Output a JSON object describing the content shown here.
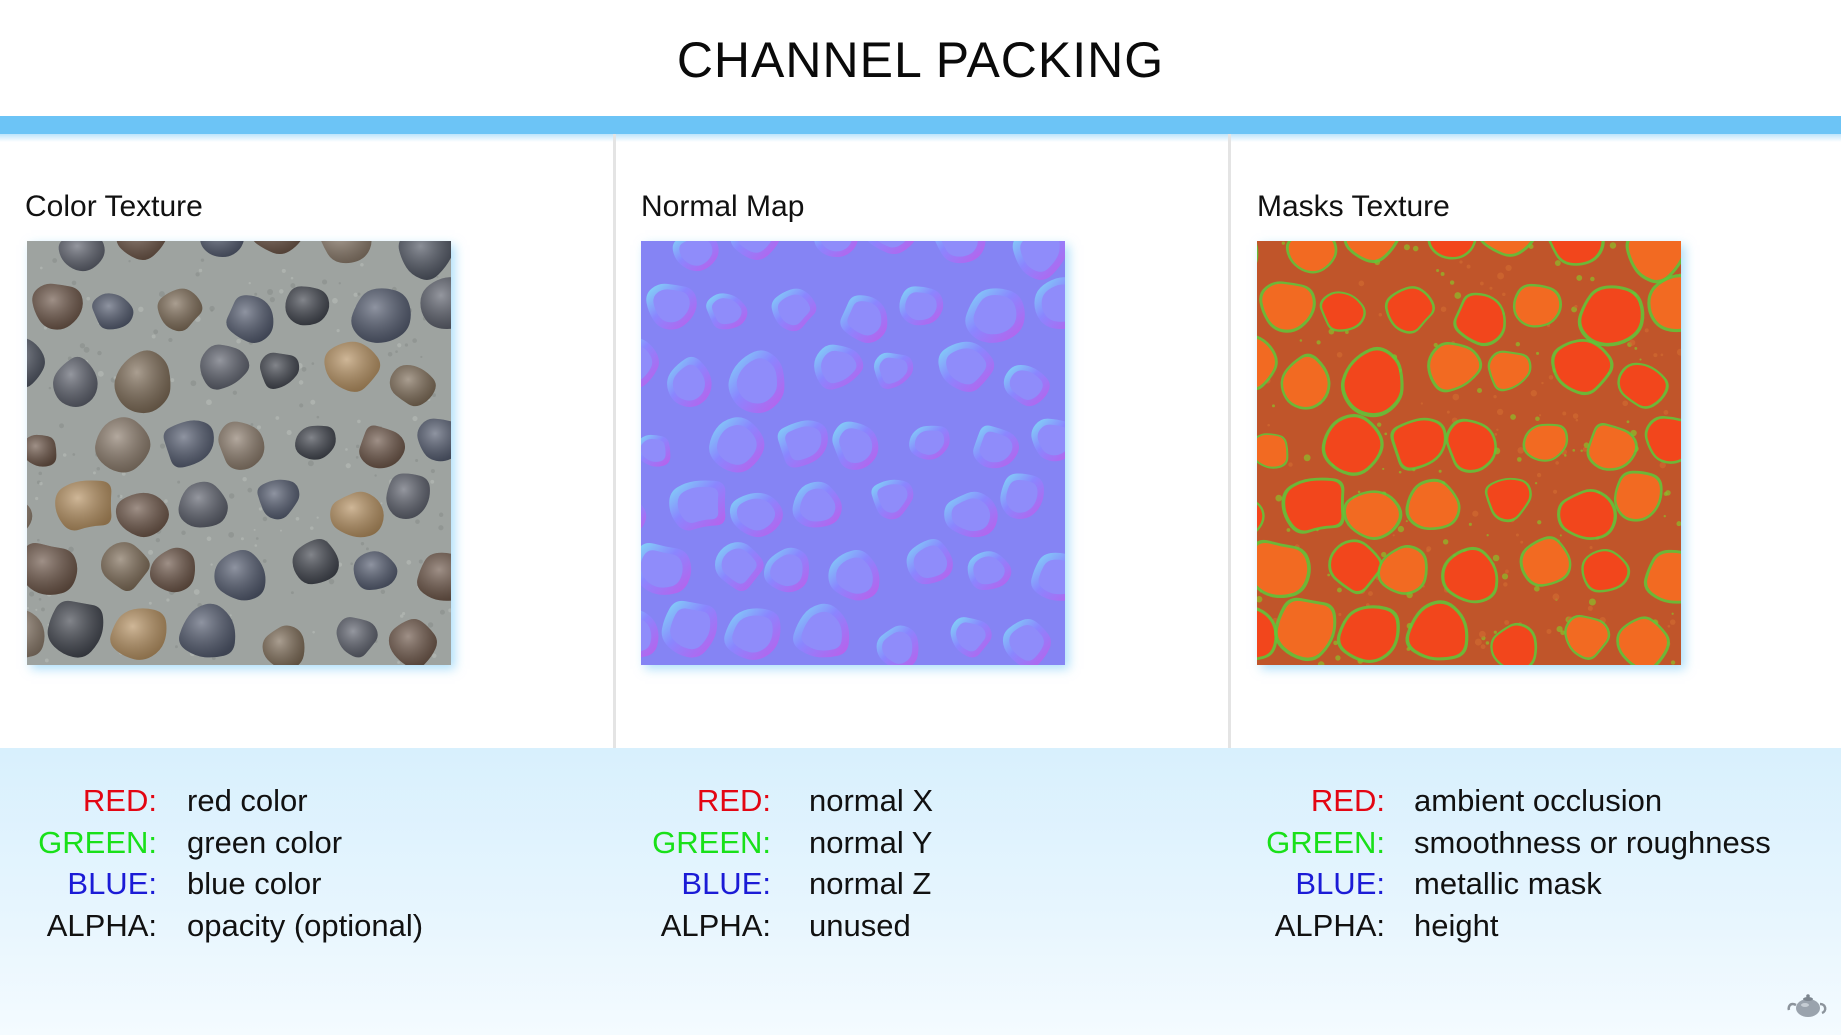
{
  "slide": {
    "title": "CHANNEL PACKING"
  },
  "panels": [
    {
      "label": "Color Texture",
      "texture_icon": "cobblestone-color-texture",
      "channels": [
        {
          "key": "RED:",
          "value": "red color",
          "color": "#e30613"
        },
        {
          "key": "GREEN:",
          "value": "green color",
          "color": "#19e019"
        },
        {
          "key": "BLUE:",
          "value": "blue color",
          "color": "#1b1bd6"
        },
        {
          "key": "ALPHA:",
          "value": "opacity (optional)",
          "color": "#111111"
        }
      ]
    },
    {
      "label": "Normal Map",
      "texture_icon": "cobblestone-normal-map",
      "channels": [
        {
          "key": "RED:",
          "value": "normal X",
          "color": "#e30613"
        },
        {
          "key": "GREEN:",
          "value": "normal Y",
          "color": "#19e019"
        },
        {
          "key": "BLUE:",
          "value": "normal Z",
          "color": "#1b1bd6"
        },
        {
          "key": "ALPHA:",
          "value": "unused",
          "color": "#111111"
        }
      ]
    },
    {
      "label": "Masks Texture",
      "texture_icon": "cobblestone-masks-texture",
      "channels": [
        {
          "key": "RED:",
          "value": "ambient occlusion",
          "color": "#e30613"
        },
        {
          "key": "GREEN:",
          "value": "smoothness or roughness",
          "color": "#19e019"
        },
        {
          "key": "BLUE:",
          "value": "metallic mask",
          "color": "#1b1bd6"
        },
        {
          "key": "ALPHA:",
          "value": "height",
          "color": "#111111"
        }
      ]
    }
  ],
  "colors": {
    "accent_stripe": "#6cc4f6",
    "legend_background": "#d8f0fd"
  },
  "logo": {
    "icon": "teapot-icon"
  }
}
